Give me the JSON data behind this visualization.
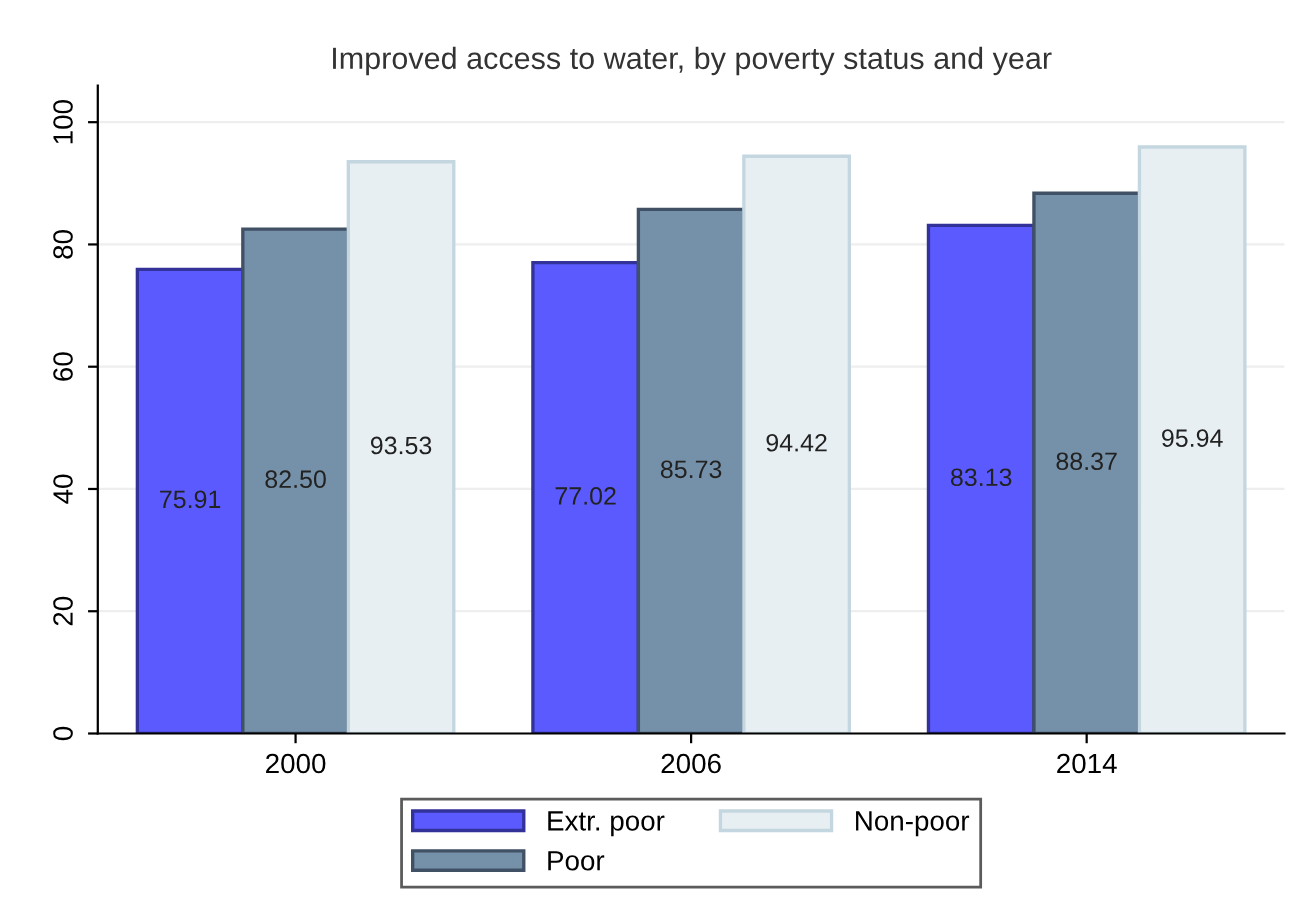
{
  "chart_data": {
    "type": "bar",
    "title": "Improved access to water, by poverty status and year",
    "categories": [
      "2000",
      "2006",
      "2014"
    ],
    "series": [
      {
        "name": "Extr. poor",
        "color": "#5a5aff",
        "values": [
          75.91,
          77.02,
          83.13
        ],
        "value_labels": [
          "75.91",
          "77.02",
          "83.13"
        ]
      },
      {
        "name": "Poor",
        "color": "#7591a9",
        "values": [
          82.5,
          85.73,
          88.37
        ],
        "value_labels": [
          "82.50",
          "85.73",
          "88.37"
        ]
      },
      {
        "name": "Non-poor",
        "color": "#e7eff3",
        "values": [
          93.53,
          94.42,
          95.94
        ],
        "value_labels": [
          "93.53",
          "94.42",
          "95.94"
        ]
      }
    ],
    "ylim": [
      0,
      106
    ],
    "yticks": [
      0,
      20,
      40,
      60,
      80,
      100
    ],
    "grid": "y",
    "legend": "bottom"
  }
}
